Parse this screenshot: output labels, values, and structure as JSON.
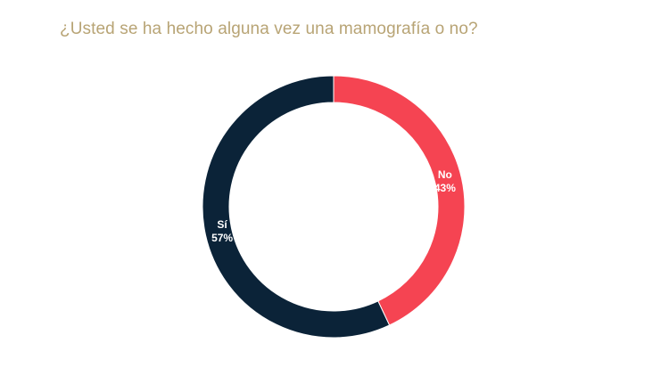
{
  "chart_data": {
    "type": "pie",
    "title": "¿Usted se ha hecho alguna vez una mamografía o no?",
    "donut": true,
    "categories": [
      "No",
      "Sí"
    ],
    "values": [
      43,
      57
    ],
    "value_labels": [
      "43%",
      "57%"
    ],
    "colors": [
      "#f54452",
      "#0b2338"
    ],
    "start": "top (12 o'clock), clockwise"
  },
  "colors": {
    "title": "#b8a475",
    "background": "#ffffff"
  }
}
